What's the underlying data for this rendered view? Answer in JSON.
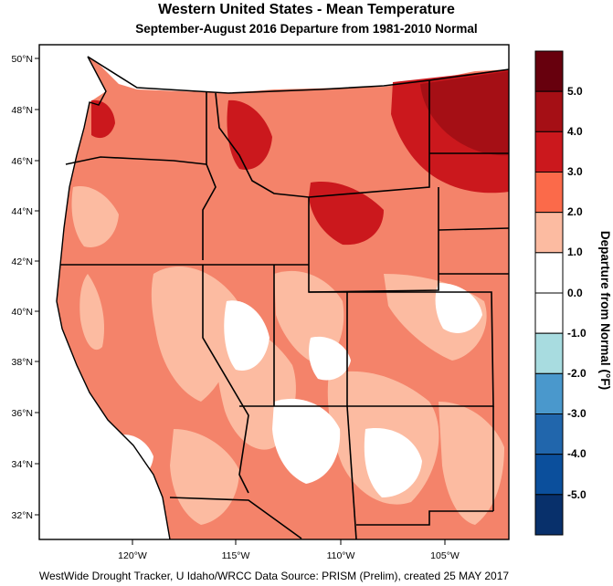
{
  "title": "Western United States - Mean Temperature",
  "subtitle": "September-August 2016  Departure from 1981-2010 Normal",
  "footer": "WestWide Drought Tracker, U Idaho/WRCC Data Source: PRISM (Prelim), created 25 MAY 2017",
  "map": {
    "lat_labels": [
      "50°N",
      "48°N",
      "46°N",
      "44°N",
      "42°N",
      "40°N",
      "38°N",
      "36°N",
      "34°N",
      "32°N"
    ],
    "lon_labels": [
      "120°W",
      "115°W",
      "110°W",
      "105°W"
    ]
  },
  "colorbar": {
    "title": "Departure from Normal (°F)",
    "tick_labels": [
      "5.0",
      "4.0",
      "3.0",
      "2.0",
      "1.0",
      "0.0",
      "-1.0",
      "-2.0",
      "-3.0",
      "-4.0",
      "-5.0"
    ],
    "colors": [
      "#67000d",
      "#a50f15",
      "#cb181d",
      "#fb6a4a",
      "#fcbba1",
      "#ffffff",
      "#ffffff",
      "#a8dce0",
      "#4a98cc",
      "#2166ac",
      "#0b4f9c",
      "#08306b"
    ]
  },
  "colors": {
    "ocean": "#ffffff",
    "border": "#000000"
  }
}
